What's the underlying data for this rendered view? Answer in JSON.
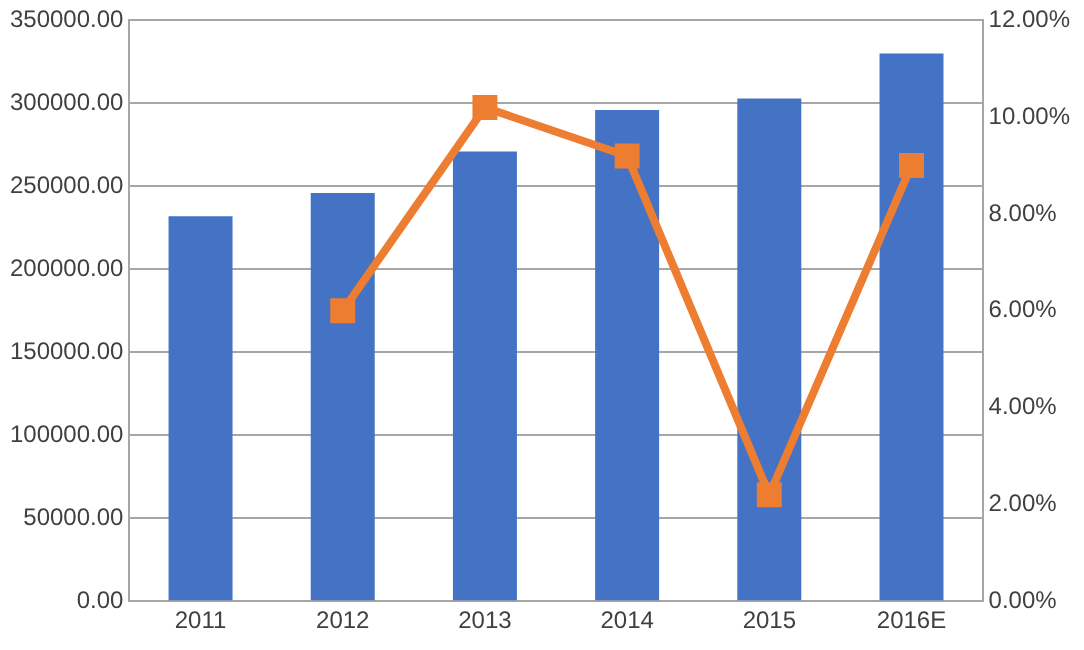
{
  "chart_data": {
    "type": "bar",
    "categories": [
      "2011",
      "2012",
      "2013",
      "2014",
      "2015",
      "2016E"
    ],
    "series": [
      {
        "color": "#4472c4",
        "values": [
          232000,
          246000,
          271000,
          296000,
          303000,
          330000
        ]
      },
      {
        "type": "line",
        "axis": "y2",
        "color": "#ed7d31",
        "marker": "square",
        "values": [
          null,
          6.0,
          10.2,
          9.2,
          2.2,
          9.0
        ]
      }
    ],
    "ylim": [
      0,
      350000
    ],
    "yticks": [
      {
        "value": 0,
        "label": "0.00"
      },
      {
        "value": 50000,
        "label": "50000.00"
      },
      {
        "value": 100000,
        "label": "100000.00"
      },
      {
        "value": 150000,
        "label": "150000.00"
      },
      {
        "value": 200000,
        "label": "200000.00"
      },
      {
        "value": 250000,
        "label": "250000.00"
      },
      {
        "value": 300000,
        "label": "300000.00"
      },
      {
        "value": 350000,
        "label": "350000.00"
      }
    ],
    "y2lim": [
      0,
      12
    ],
    "y2ticks": [
      {
        "value": 0,
        "label": "0.00%"
      },
      {
        "value": 2,
        "label": "2.00%"
      },
      {
        "value": 4,
        "label": "4.00%"
      },
      {
        "value": 6,
        "label": "6.00%"
      },
      {
        "value": 8,
        "label": "8.00%"
      },
      {
        "value": 10,
        "label": "10.00%"
      },
      {
        "value": 12,
        "label": "12.00%"
      }
    ],
    "grid": "y"
  }
}
